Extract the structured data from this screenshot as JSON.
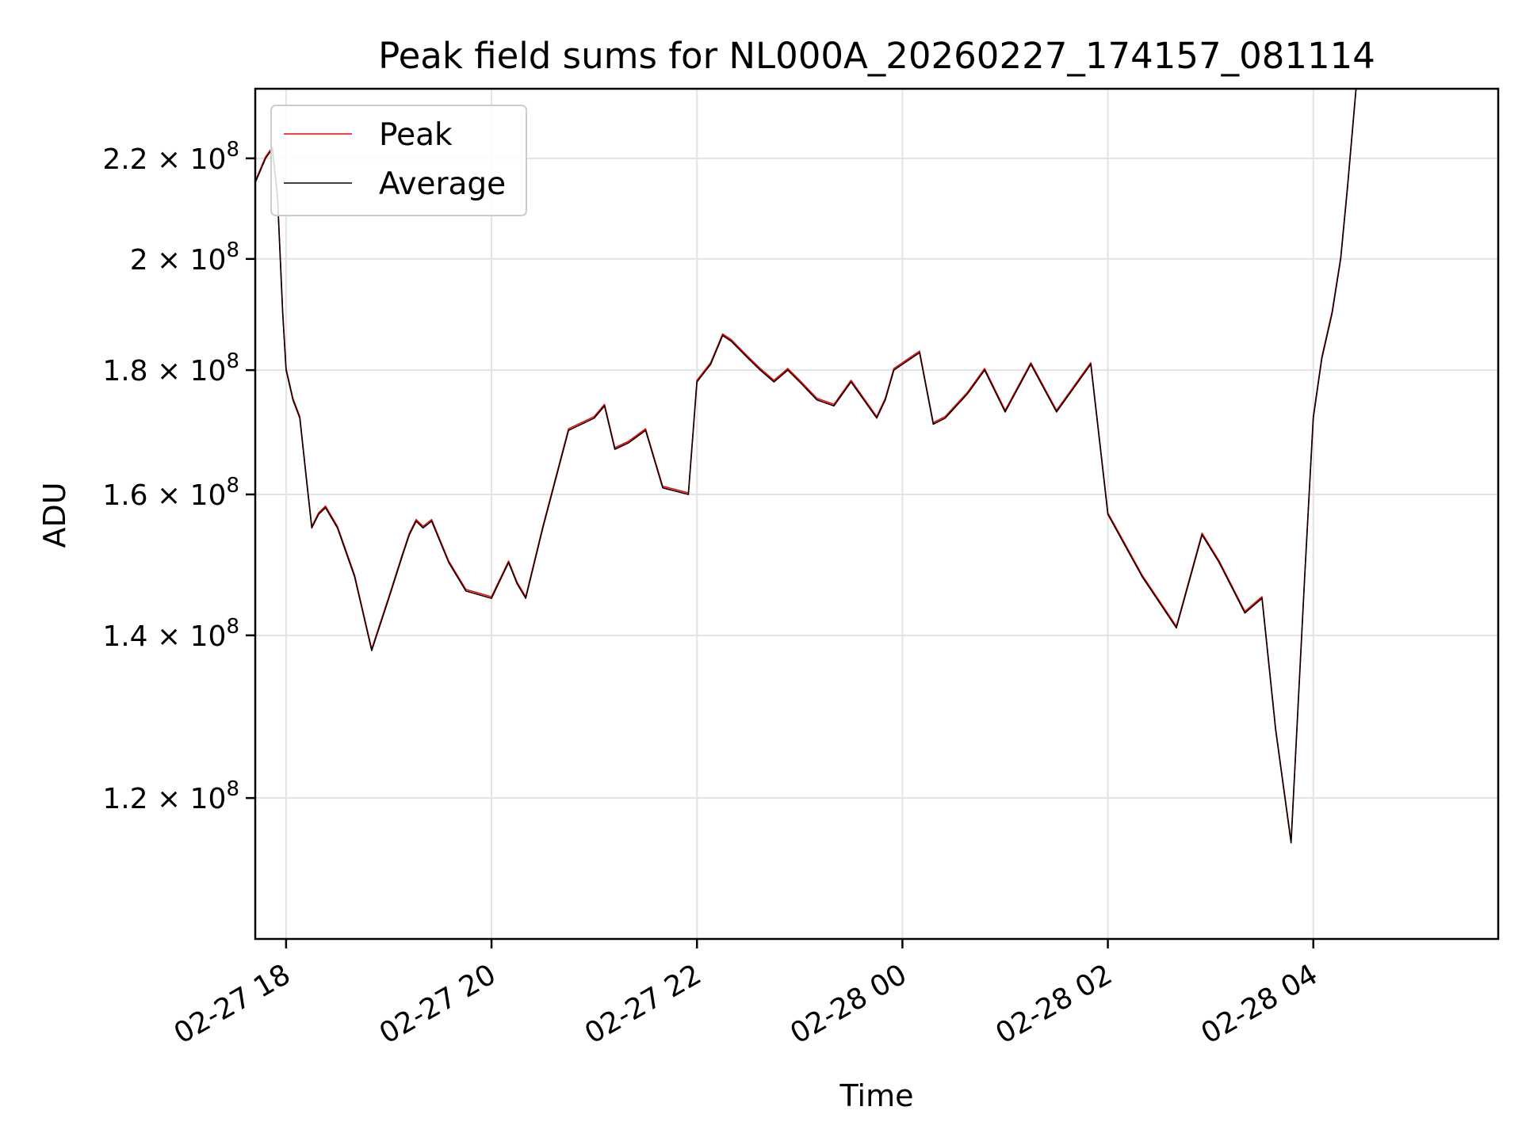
{
  "chart_data": {
    "type": "line",
    "title": "Peak field sums for NL000A_20260227_174157_081114",
    "xlabel": "Time",
    "ylabel": "ADU",
    "y_scale": "log",
    "grid": true,
    "legend_position": "top-left",
    "xlim": [
      "2026-02-27 17:42",
      "2026-02-28 05:48"
    ],
    "ylim": [
      105000000,
      235000000
    ],
    "x_ticks": [
      "02-27 18",
      "02-27 20",
      "02-27 22",
      "02-28 00",
      "02-28 02",
      "02-28 04"
    ],
    "x_tick_times": [
      "2026-02-27 18:00",
      "2026-02-27 20:00",
      "2026-02-27 22:00",
      "2026-02-28 00:00",
      "2026-02-28 02:00",
      "2026-02-28 04:00"
    ],
    "y_ticks": [
      {
        "value": 120000000,
        "mantissa": "1.2",
        "base": "10",
        "exp": "8"
      },
      {
        "value": 140000000,
        "mantissa": "1.4",
        "base": "10",
        "exp": "8"
      },
      {
        "value": 160000000,
        "mantissa": "1.6",
        "base": "10",
        "exp": "8"
      },
      {
        "value": 180000000,
        "mantissa": "1.8",
        "base": "10",
        "exp": "8"
      },
      {
        "value": 200000000,
        "mantissa": "2",
        "base": "10",
        "exp": "8"
      },
      {
        "value": 220000000,
        "mantissa": "2.2",
        "base": "10",
        "exp": "8"
      }
    ],
    "x": [
      "2026-02-27 17:42",
      "2026-02-27 17:48",
      "2026-02-27 17:52",
      "2026-02-27 17:55",
      "2026-02-27 17:58",
      "2026-02-27 18:00",
      "2026-02-27 18:04",
      "2026-02-27 18:08",
      "2026-02-27 18:12",
      "2026-02-27 18:15",
      "2026-02-27 18:19",
      "2026-02-27 18:23",
      "2026-02-27 18:30",
      "2026-02-27 18:40",
      "2026-02-27 18:50",
      "2026-02-27 19:00",
      "2026-02-27 19:08",
      "2026-02-27 19:12",
      "2026-02-27 19:16",
      "2026-02-27 19:20",
      "2026-02-27 19:25",
      "2026-02-27 19:35",
      "2026-02-27 19:45",
      "2026-02-27 20:00",
      "2026-02-27 20:10",
      "2026-02-27 20:15",
      "2026-02-27 20:20",
      "2026-02-27 20:30",
      "2026-02-27 20:45",
      "2026-02-27 21:00",
      "2026-02-27 21:06",
      "2026-02-27 21:12",
      "2026-02-27 21:20",
      "2026-02-27 21:30",
      "2026-02-27 21:40",
      "2026-02-27 21:55",
      "2026-02-27 22:00",
      "2026-02-27 22:08",
      "2026-02-27 22:15",
      "2026-02-27 22:20",
      "2026-02-27 22:30",
      "2026-02-27 22:37",
      "2026-02-27 22:45",
      "2026-02-27 22:53",
      "2026-02-27 23:00",
      "2026-02-27 23:10",
      "2026-02-27 23:20",
      "2026-02-27 23:30",
      "2026-02-27 23:45",
      "2026-02-27 23:50",
      "2026-02-27 23:55",
      "2026-02-28 00:10",
      "2026-02-28 00:18",
      "2026-02-28 00:25",
      "2026-02-28 00:38",
      "2026-02-28 00:48",
      "2026-02-28 01:00",
      "2026-02-28 01:15",
      "2026-02-28 01:30",
      "2026-02-28 01:50",
      "2026-02-28 02:00",
      "2026-02-28 02:20",
      "2026-02-28 02:40",
      "2026-02-28 02:55",
      "2026-02-28 03:05",
      "2026-02-28 03:20",
      "2026-02-28 03:30",
      "2026-02-28 03:38",
      "2026-02-28 03:47",
      "2026-02-28 03:55",
      "2026-02-28 04:00",
      "2026-02-28 04:05",
      "2026-02-28 04:11",
      "2026-02-28 04:16",
      "2026-02-28 04:20",
      "2026-02-28 04:25",
      "2026-02-28 04:30",
      "2026-02-28 04:40",
      "2026-02-28 04:50",
      "2026-02-28 04:57",
      "2026-02-28 05:05",
      "2026-02-28 05:12",
      "2026-02-28 05:20",
      "2026-02-28 05:30",
      "2026-02-28 05:40",
      "2026-02-28 05:48"
    ],
    "series": [
      {
        "name": "Peak",
        "color": "#ff0000",
        "values": [
          215000000,
          220000000,
          222000000,
          212000000,
          190000000,
          180000000,
          175000000,
          172000000,
          162000000,
          155000000,
          157000000,
          158000000,
          155000000,
          148000000,
          138000000,
          145000000,
          151000000,
          154000000,
          156000000,
          155000000,
          156000000,
          150000000,
          146000000,
          145000000,
          150000000,
          147000000,
          145000000,
          155000000,
          170000000,
          172000000,
          174000000,
          167000000,
          168000000,
          170000000,
          161000000,
          160000000,
          178000000,
          181000000,
          186000000,
          185000000,
          182000000,
          180000000,
          178000000,
          180000000,
          178000000,
          175000000,
          174000000,
          178000000,
          172000000,
          175000000,
          180000000,
          183000000,
          171000000,
          172000000,
          176000000,
          180000000,
          173000000,
          181000000,
          173000000,
          181000000,
          157000000,
          148000000,
          141000000,
          154000000,
          150000000,
          143000000,
          145000000,
          128000000,
          115000000,
          148000000,
          172000000,
          182000000,
          190000000,
          200000000,
          214000000,
          235000000,
          235000000,
          235000000,
          235000000,
          235000000,
          235000000,
          235000000,
          235000000,
          235000000,
          235000000,
          235000000
        ]
      },
      {
        "name": "Average",
        "color": "#000000",
        "values": [
          215000000,
          220000000,
          222000000,
          212000000,
          190000000,
          180000000,
          175000000,
          172000000,
          162000000,
          155000000,
          157000000,
          158000000,
          155000000,
          148000000,
          138000000,
          145000000,
          151000000,
          154000000,
          156000000,
          155000000,
          156000000,
          150000000,
          146000000,
          145000000,
          150000000,
          147000000,
          145000000,
          155000000,
          170000000,
          172000000,
          174000000,
          167000000,
          168000000,
          170000000,
          161000000,
          160000000,
          178000000,
          181000000,
          186000000,
          185000000,
          182000000,
          180000000,
          178000000,
          180000000,
          178000000,
          175000000,
          174000000,
          178000000,
          172000000,
          175000000,
          180000000,
          183000000,
          171000000,
          172000000,
          176000000,
          180000000,
          173000000,
          181000000,
          173000000,
          181000000,
          157000000,
          148000000,
          141000000,
          154000000,
          150000000,
          143000000,
          145000000,
          128000000,
          115000000,
          148000000,
          172000000,
          182000000,
          190000000,
          200000000,
          214000000,
          235000000,
          235000000,
          235000000,
          235000000,
          235000000,
          235000000,
          235000000,
          235000000,
          235000000,
          235000000,
          235000000
        ]
      }
    ]
  }
}
